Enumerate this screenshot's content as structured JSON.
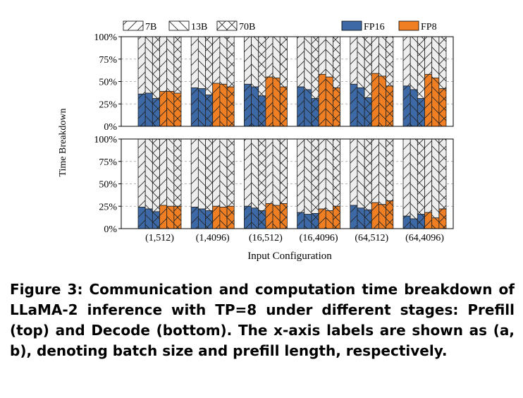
{
  "chart_data": {
    "type": "bar",
    "stacked": true,
    "patterns": [
      {
        "name": "7B",
        "pattern": "forward-slash"
      },
      {
        "name": "13B",
        "pattern": "back-slash"
      },
      {
        "name": "70B",
        "pattern": "cross"
      }
    ],
    "precisions": [
      {
        "name": "FP16",
        "color": "#3d6aa7"
      },
      {
        "name": "FP8",
        "color": "#ef7f22"
      }
    ],
    "upper_color": "#eeeeee",
    "categories": [
      "(1,512)",
      "(1,4096)",
      "(16,512)",
      "(16,4096)",
      "(64,512)",
      "(64,4096)"
    ],
    "xlabel": "Input Configuration",
    "ylabel": "Time Breakdown",
    "yticks": [
      "0%",
      "25%",
      "50%",
      "75%",
      "100%"
    ],
    "ylim": [
      0,
      100
    ],
    "grid": "horizontal dashed",
    "legend_placement": "top",
    "panels": [
      {
        "stage": "Prefill",
        "position": "top",
        "values": [
          {
            "FP16": {
              "7B": 36,
              "13B": 37,
              "70B": 31
            },
            "FP8": {
              "7B": 39,
              "13B": 39,
              "70B": 37
            }
          },
          {
            "FP16": {
              "7B": 43,
              "13B": 42,
              "70B": 35
            },
            "FP8": {
              "7B": 48,
              "13B": 47,
              "70B": 44
            }
          },
          {
            "FP16": {
              "7B": 47,
              "13B": 44,
              "70B": 34
            },
            "FP8": {
              "7B": 55,
              "13B": 54,
              "70B": 44
            }
          },
          {
            "FP16": {
              "7B": 44,
              "13B": 41,
              "70B": 31
            },
            "FP8": {
              "7B": 58,
              "13B": 55,
              "70B": 43
            }
          },
          {
            "FP16": {
              "7B": 47,
              "13B": 43,
              "70B": 32
            },
            "FP8": {
              "7B": 59,
              "13B": 56,
              "70B": 45
            }
          },
          {
            "FP16": {
              "7B": 45,
              "13B": 41,
              "70B": 31
            },
            "FP8": {
              "7B": 58,
              "13B": 54,
              "70B": 42
            }
          }
        ]
      },
      {
        "stage": "Decode",
        "position": "bottom",
        "values": [
          {
            "FP16": {
              "7B": 24,
              "13B": 22,
              "70B": 19
            },
            "FP8": {
              "7B": 26,
              "13B": 25,
              "70B": 25
            }
          },
          {
            "FP16": {
              "7B": 24,
              "13B": 22,
              "70B": 20
            },
            "FP8": {
              "7B": 25,
              "13B": 24,
              "70B": 25
            }
          },
          {
            "FP16": {
              "7B": 25,
              "13B": 23,
              "70B": 20
            },
            "FP8": {
              "7B": 28,
              "13B": 26,
              "70B": 28
            }
          },
          {
            "FP16": {
              "7B": 18,
              "13B": 16,
              "70B": 17
            },
            "FP8": {
              "7B": 22,
              "13B": 20,
              "70B": 25
            }
          },
          {
            "FP16": {
              "7B": 26,
              "13B": 23,
              "70B": 21
            },
            "FP8": {
              "7B": 29,
              "13B": 27,
              "70B": 31
            }
          },
          {
            "FP16": {
              "7B": 14,
              "13B": 11,
              "70B": 16
            },
            "FP8": {
              "7B": 18,
              "13B": 12,
              "70B": 22
            }
          }
        ]
      }
    ]
  },
  "caption": "Figure 3: Communication and computation time breakdown of LLaMA-2 inference with TP=8 under different stages: Prefill (top) and Decode (bottom). The x-axis labels are shown as (a, b), denoting batch size and prefill length, respectively."
}
